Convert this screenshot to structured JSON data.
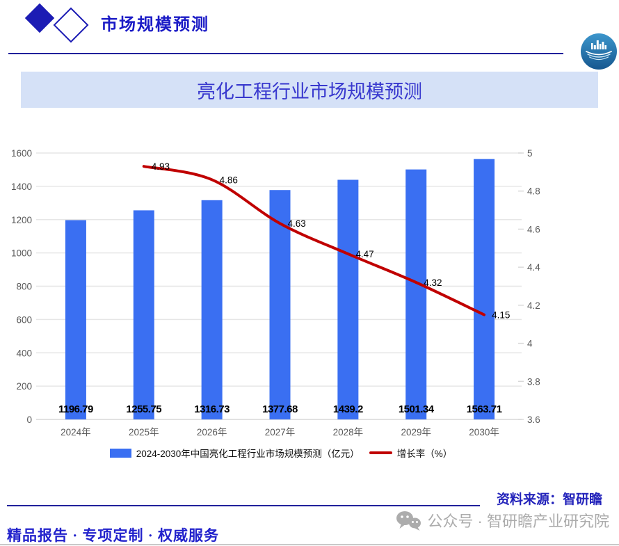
{
  "header": {
    "title": "市场规模预测"
  },
  "banner": {
    "title": "亮化工程行业市场规模预测"
  },
  "chart_data": {
    "type": "bar",
    "title": "亮化工程行业市场规模预测",
    "categories": [
      "2024年",
      "2025年",
      "2026年",
      "2027年",
      "2028年",
      "2029年",
      "2030年"
    ],
    "series": [
      {
        "name": "2024-2030年中国亮化工程行业市场规模预测（亿元）",
        "type": "bar",
        "color": "#3A6FF2",
        "values": [
          1196.79,
          1255.75,
          1316.73,
          1377.68,
          1439.2,
          1501.34,
          1563.71
        ]
      },
      {
        "name": "增长率（%）",
        "type": "line",
        "color": "#C00000",
        "values": [
          null,
          4.93,
          4.86,
          4.63,
          4.47,
          4.32,
          4.15
        ]
      }
    ],
    "left_axis": {
      "min": 0,
      "max": 1600,
      "step": 200
    },
    "right_axis": {
      "min": 3.6,
      "max": 5,
      "step": 0.2
    },
    "grid": true,
    "legend_position": "bottom"
  },
  "footer": {
    "source": "资料来源：智研瞻",
    "wechat": "公众号 · 智研瞻产业研究院",
    "slogan": "精品报告 ·  专项定制 · 权威服务"
  }
}
